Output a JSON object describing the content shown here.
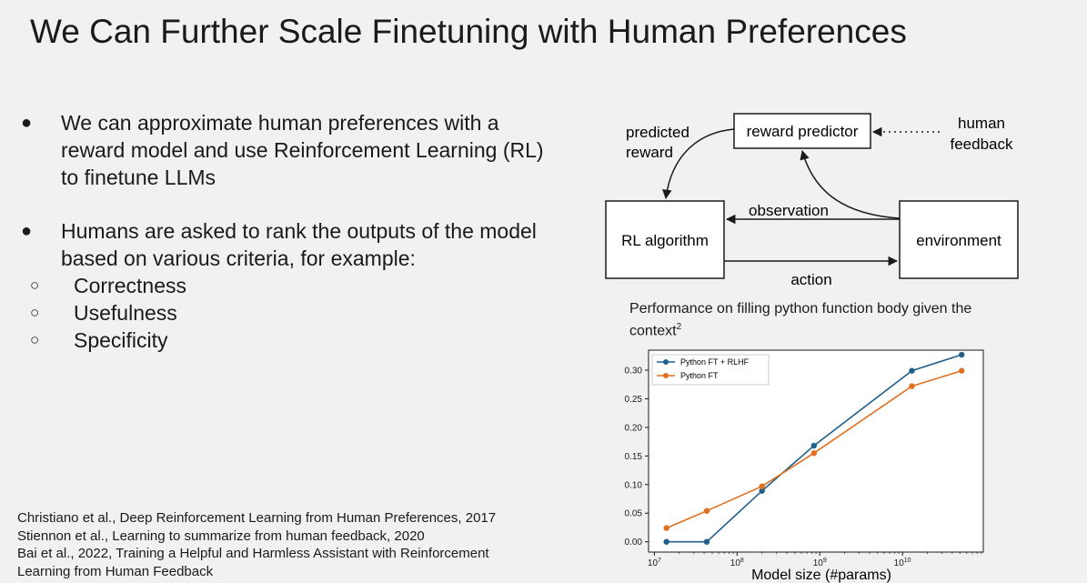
{
  "slide": {
    "title": "We Can Further Scale Finetuning with Human Preferences"
  },
  "bullets": [
    {
      "text": "We can approximate human preferences with a reward model and use Reinforcement Learning (RL) to finetune LLMs"
    },
    {
      "text": "Humans are asked to rank the outputs of the model based on various criteria, for example:",
      "subitems": [
        "Correctness",
        "Usefulness",
        "Specificity"
      ]
    }
  ],
  "references": [
    "Christiano et al., Deep Reinforcement Learning from Human Preferences, 2017",
    "Stiennon et al., Learning to summarize from human feedback, 2020",
    "Bai et al., 2022, Training a Helpful and Harmless Assistant with Reinforcement",
    "Learning from Human Feedback"
  ],
  "diagram": {
    "reward_predictor": "reward predictor",
    "human_feedback_line1": "human",
    "human_feedback_line2": "feedback",
    "predicted_reward_line1": "predicted",
    "predicted_reward_line2": "reward",
    "rl_algorithm": "RL algorithm",
    "environment": "environment",
    "observation": "observation",
    "action": "action"
  },
  "chart_caption": {
    "text": "Performance on filling python function body given the context",
    "superscript": "2"
  },
  "chart_data": {
    "type": "line",
    "title": "",
    "xlabel": "Model size (#params)",
    "ylabel": "",
    "x_scale": "log",
    "x": [
      14000000.0,
      43000000.0,
      200000000.0,
      850000000.0,
      13000000000.0,
      52000000000.0
    ],
    "xlim": [
      8500000.0,
      95000000000.0
    ],
    "x_ticks": [
      {
        "value": 10000000.0,
        "base": "10",
        "exp": "7"
      },
      {
        "value": 100000000.0,
        "base": "10",
        "exp": "8"
      },
      {
        "value": 1000000000.0,
        "base": "10",
        "exp": "9"
      },
      {
        "value": 10000000000.0,
        "base": "10",
        "exp": "10"
      }
    ],
    "ylim": [
      -0.018,
      0.335
    ],
    "y_ticks": [
      "0.00",
      "0.05",
      "0.10",
      "0.15",
      "0.20",
      "0.25",
      "0.30"
    ],
    "grid": false,
    "legend_position": "top-left",
    "series": [
      {
        "name": "Python FT + RLHF",
        "color": "#1f5f8b",
        "values": [
          0.0,
          0.0,
          0.089,
          0.168,
          0.299,
          0.327
        ]
      },
      {
        "name": "Python FT",
        "color": "#e0701e",
        "values": [
          0.024,
          0.054,
          0.097,
          0.155,
          0.272,
          0.299
        ]
      }
    ]
  }
}
